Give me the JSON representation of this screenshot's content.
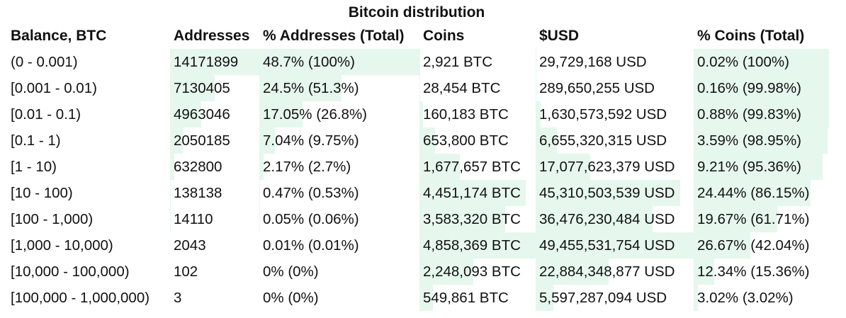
{
  "title": "Bitcoin distribution",
  "columns": [
    "Balance, BTC",
    "Addresses",
    "% Addresses (Total)",
    "Coins",
    "$USD",
    "% Coins (Total)"
  ],
  "colors": {
    "bar": "#e6f7ee",
    "text": "#111111"
  },
  "rows": [
    {
      "balance": "(0 - 0.001)",
      "addresses": "14171899",
      "pct_addresses": "48.7% (100%)",
      "coins": "2,921 BTC",
      "usd": "29,729,168 USD",
      "pct_coins": "0.02% (100%)",
      "addr_frac": 1.0,
      "pct_addr_frac": 1.0,
      "coins_frac": 0.0006,
      "usd_frac": 0.0006,
      "pct_coins_frac": 1.0
    },
    {
      "balance": "[0.001 - 0.01)",
      "addresses": "7130405",
      "pct_addresses": "24.5% (51.3%)",
      "coins": "28,454 BTC",
      "usd": "289,650,255 USD",
      "pct_coins": "0.16% (99.98%)",
      "addr_frac": 0.503,
      "pct_addr_frac": 0.513,
      "coins_frac": 0.006,
      "usd_frac": 0.006,
      "pct_coins_frac": 0.9998
    },
    {
      "balance": "[0.01 - 0.1)",
      "addresses": "4963046",
      "pct_addresses": "17.05% (26.8%)",
      "coins": "160,183 BTC",
      "usd": "1,630,573,592 USD",
      "pct_coins": "0.88% (99.83%)",
      "addr_frac": 0.35,
      "pct_addr_frac": 0.268,
      "coins_frac": 0.033,
      "usd_frac": 0.033,
      "pct_coins_frac": 0.9983
    },
    {
      "balance": "[0.1 - 1)",
      "addresses": "2050185",
      "pct_addresses": "7.04% (9.75%)",
      "coins": "653,800 BTC",
      "usd": "6,655,320,315 USD",
      "pct_coins": "3.59% (98.95%)",
      "addr_frac": 0.145,
      "pct_addr_frac": 0.0975,
      "coins_frac": 0.135,
      "usd_frac": 0.135,
      "pct_coins_frac": 0.9895
    },
    {
      "balance": "[1 - 10)",
      "addresses": "632800",
      "pct_addresses": "2.17% (2.7%)",
      "coins": "1,677,657 BTC",
      "usd": "17,077,623,379 USD",
      "pct_coins": "9.21% (95.36%)",
      "addr_frac": 0.045,
      "pct_addr_frac": 0.027,
      "coins_frac": 0.345,
      "usd_frac": 0.345,
      "pct_coins_frac": 0.9536
    },
    {
      "balance": "[10 - 100)",
      "addresses": "138138",
      "pct_addresses": "0.47% (0.53%)",
      "coins": "4,451,174 BTC",
      "usd": "45,310,503,539 USD",
      "pct_coins": "24.44% (86.15%)",
      "addr_frac": 0.0097,
      "pct_addr_frac": 0.0053,
      "coins_frac": 0.916,
      "usd_frac": 0.916,
      "pct_coins_frac": 0.8615
    },
    {
      "balance": "[100 - 1,000)",
      "addresses": "14110",
      "pct_addresses": "0.05% (0.06%)",
      "coins": "3,583,320 BTC",
      "usd": "36,476,230,484 USD",
      "pct_coins": "19.67% (61.71%)",
      "addr_frac": 0.001,
      "pct_addr_frac": 0.0006,
      "coins_frac": 0.738,
      "usd_frac": 0.738,
      "pct_coins_frac": 0.6171
    },
    {
      "balance": "[1,000 - 10,000)",
      "addresses": "2043",
      "pct_addresses": "0.01% (0.01%)",
      "coins": "4,858,369 BTC",
      "usd": "49,455,531,754 USD",
      "pct_coins": "26.67% (42.04%)",
      "addr_frac": 0.0001,
      "pct_addr_frac": 0.0001,
      "coins_frac": 1.0,
      "usd_frac": 1.0,
      "pct_coins_frac": 0.4204
    },
    {
      "balance": "[10,000 - 100,000)",
      "addresses": "102",
      "pct_addresses": "0% (0%)",
      "coins": "2,248,093 BTC",
      "usd": "22,884,348,877 USD",
      "pct_coins": "12.34% (15.36%)",
      "addr_frac": 0,
      "pct_addr_frac": 0,
      "coins_frac": 0.463,
      "usd_frac": 0.463,
      "pct_coins_frac": 0.1536
    },
    {
      "balance": "[100,000 - 1,000,000)",
      "addresses": "3",
      "pct_addresses": "0% (0%)",
      "coins": "549,861 BTC",
      "usd": "5,597,287,094 USD",
      "pct_coins": "3.02% (3.02%)",
      "addr_frac": 0,
      "pct_addr_frac": 0,
      "coins_frac": 0.113,
      "usd_frac": 0.113,
      "pct_coins_frac": 0.0302
    }
  ]
}
